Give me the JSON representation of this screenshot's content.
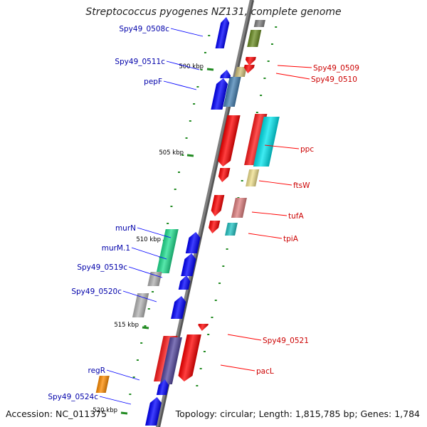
{
  "title": "Streptococcus pyogenes NZ131, complete genome",
  "footer": {
    "accession": "Accession: NC_011375",
    "topology": "Topology: circular; Length: 1,815,785 bp; Genes: 1,784"
  },
  "colors": {
    "forward_gene": "#ff0000",
    "reverse_gene": "#0000ff",
    "forward_label": "#cc0000",
    "reverse_label": "#0000aa",
    "backbone": "#808080",
    "tick": "#228b22"
  },
  "scale": {
    "unit": "kbp",
    "ticks": [
      "500 kbp",
      "505 kbp",
      "510 kbp",
      "515 kbp",
      "520 kbp"
    ]
  },
  "genes_forward": [
    {
      "label": "Spy49_0509",
      "color": "#ff0000"
    },
    {
      "label": "Spy49_0510",
      "color": "#ff0000"
    },
    {
      "label": "ppc",
      "color": "#ff0000"
    },
    {
      "label": "ftsW",
      "color": "#ff0000"
    },
    {
      "label": "tufA",
      "color": "#ff0000"
    },
    {
      "label": "tpiA",
      "color": "#ff0000"
    },
    {
      "label": "Spy49_0521",
      "color": "#ff0000"
    },
    {
      "label": "pacL",
      "color": "#ff0000"
    }
  ],
  "genes_reverse": [
    {
      "label": "Spy49_0508c",
      "color": "#0000ff"
    },
    {
      "label": "Spy49_0511c",
      "color": "#0000ff"
    },
    {
      "label": "pepF",
      "color": "#0000ff"
    },
    {
      "label": "murN",
      "color": "#0000ff"
    },
    {
      "label": "murM.1",
      "color": "#0000ff"
    },
    {
      "label": "Spy49_0519c",
      "color": "#0000ff"
    },
    {
      "label": "Spy49_0520c",
      "color": "#0000ff"
    },
    {
      "label": "regR",
      "color": "#0000ff"
    },
    {
      "label": "Spy49_0524c",
      "color": "#0000ff"
    }
  ]
}
